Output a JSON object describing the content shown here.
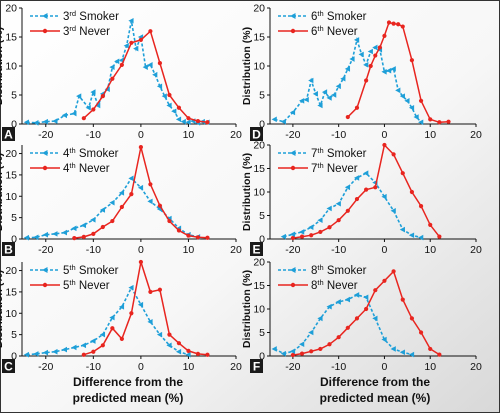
{
  "colors": {
    "smoker": "#1e9fd8",
    "never": "#e8251f"
  },
  "x_label_line1": "Difference from the",
  "x_label_line2": "predicted mean (%)",
  "y_label": "Distribution (%)",
  "chart_data": [
    {
      "type": "line",
      "panel": "A",
      "xlim": [
        -25,
        20
      ],
      "ylim": [
        0,
        20
      ],
      "xticks": [
        -20,
        -10,
        0,
        10,
        20
      ],
      "yticks": [
        0,
        5,
        10,
        15,
        20
      ],
      "legend": {
        "position": "top-left",
        "smoker_ord": "3",
        "smoker_sup": "rd",
        "smoker_word": "Smoker",
        "never_ord": "3",
        "never_sup": "rd",
        "never_word": "Never"
      },
      "series": [
        {
          "name": "3rd Smoker",
          "style": "smoker",
          "x": [
            -24,
            -22,
            -20,
            -18,
            -16,
            -14,
            -13,
            -11,
            -10,
            -9,
            -8,
            -7,
            -6,
            -5,
            -4,
            -3,
            -2,
            -1,
            0,
            1,
            2,
            3,
            4,
            5,
            6,
            7,
            8,
            9,
            10,
            11,
            12,
            13,
            14
          ],
          "y": [
            0.3,
            0.2,
            0.4,
            0.5,
            1.5,
            1.8,
            4.8,
            2.8,
            5.5,
            3.2,
            5.2,
            6.0,
            9.8,
            10.8,
            11.0,
            13.5,
            17.8,
            13.0,
            15.0,
            9.8,
            10.2,
            8.5,
            6.5,
            4.8,
            3.2,
            2.2,
            0.8,
            0.4,
            0.3,
            0.5,
            0.2,
            0.4,
            0.3
          ]
        },
        {
          "name": "3rd Never",
          "style": "never",
          "x": [
            -12,
            -10,
            -8,
            -6,
            -4,
            -2,
            0,
            2,
            4,
            6,
            8,
            10,
            12,
            14
          ],
          "y": [
            1.0,
            2.5,
            4.8,
            7.8,
            10.2,
            14.0,
            14.5,
            16.0,
            10.5,
            5.0,
            2.8,
            1.0,
            0.5,
            0.3
          ]
        }
      ]
    },
    {
      "type": "line",
      "panel": "D",
      "xlim": [
        -25,
        20
      ],
      "ylim": [
        0,
        20
      ],
      "xticks": [
        -20,
        -10,
        0,
        10,
        20
      ],
      "yticks": [
        0,
        5,
        10,
        15,
        20
      ],
      "legend": {
        "position": "top-left",
        "smoker_ord": "6",
        "smoker_sup": "th",
        "smoker_word": "Smoker",
        "never_ord": "6",
        "never_sup": "th",
        "never_word": "Never"
      },
      "series": [
        {
          "name": "6th Smoker",
          "style": "smoker",
          "x": [
            -24,
            -22,
            -20,
            -18,
            -17,
            -16,
            -15,
            -14,
            -13,
            -12,
            -11,
            -10,
            -9,
            -8,
            -7,
            -6,
            -5,
            -4,
            -3,
            -2,
            -1,
            0,
            1,
            2,
            3,
            4,
            5,
            6,
            7,
            8
          ],
          "y": [
            0.8,
            0.4,
            2.0,
            4.0,
            4.2,
            7.5,
            5.2,
            3.2,
            5.5,
            4.5,
            5.0,
            6.5,
            7.8,
            9.5,
            11.2,
            14.5,
            12.0,
            10.2,
            12.5,
            13.2,
            12.8,
            9.0,
            9.2,
            9.5,
            5.8,
            4.8,
            4.0,
            2.8,
            1.2,
            0.3
          ]
        },
        {
          "name": "6th Never",
          "style": "never",
          "x": [
            -8,
            -6,
            -4,
            -3,
            -2,
            -1,
            0,
            1,
            2,
            3,
            4,
            6,
            8,
            10,
            12,
            14
          ],
          "y": [
            1.2,
            2.8,
            7.5,
            10.0,
            11.8,
            13.2,
            15.2,
            17.5,
            17.3,
            17.2,
            16.8,
            11.0,
            4.0,
            0.8,
            0.3,
            0.4
          ]
        }
      ]
    },
    {
      "type": "line",
      "panel": "B",
      "xlim": [
        -25,
        20
      ],
      "ylim": [
        0,
        22
      ],
      "xticks": [
        -20,
        -10,
        0,
        10,
        20
      ],
      "yticks": [
        0,
        5,
        10,
        15,
        20
      ],
      "legend": {
        "position": "top-left",
        "smoker_ord": "4",
        "smoker_sup": "th",
        "smoker_word": "Smoker",
        "never_ord": "4",
        "never_sup": "th",
        "never_word": "Never"
      },
      "series": [
        {
          "name": "4th Smoker",
          "style": "smoker",
          "x": [
            -24,
            -22,
            -20,
            -18,
            -16,
            -14,
            -12,
            -10,
            -8,
            -6,
            -4,
            -2,
            0,
            2,
            4,
            6,
            8,
            10,
            12
          ],
          "y": [
            0.3,
            0.4,
            1.0,
            1.2,
            1.5,
            2.5,
            3.2,
            4.5,
            6.8,
            8.5,
            10.8,
            14.2,
            12.0,
            8.8,
            7.0,
            4.8,
            2.5,
            1.0,
            0.5
          ]
        },
        {
          "name": "4th Never",
          "style": "never",
          "x": [
            -14,
            -12,
            -10,
            -8,
            -6,
            -4,
            -2,
            0,
            2,
            4,
            6,
            8,
            10,
            12,
            14
          ],
          "y": [
            0.2,
            0.5,
            1.2,
            2.8,
            4.2,
            7.5,
            10.5,
            21.5,
            12.8,
            7.8,
            4.2,
            2.0,
            0.8,
            0.4,
            0.3
          ]
        }
      ]
    },
    {
      "type": "line",
      "panel": "E",
      "xlim": [
        -25,
        20
      ],
      "ylim": [
        0,
        20
      ],
      "xticks": [
        -20,
        -10,
        0,
        10,
        20
      ],
      "yticks": [
        0,
        5,
        10,
        15,
        20
      ],
      "legend": {
        "position": "top-left",
        "smoker_ord": "7",
        "smoker_sup": "th",
        "smoker_word": "Smoker",
        "never_ord": "7",
        "never_sup": "th",
        "never_word": "Never"
      },
      "series": [
        {
          "name": "7th Smoker",
          "style": "smoker",
          "x": [
            -22,
            -20,
            -18,
            -16,
            -14,
            -12,
            -10,
            -8,
            -6,
            -4,
            -2,
            0,
            2,
            4,
            6,
            8
          ],
          "y": [
            0.5,
            1.0,
            1.5,
            2.5,
            4.0,
            6.5,
            7.5,
            11.0,
            13.0,
            14.0,
            12.0,
            9.0,
            6.0,
            2.0,
            0.8,
            0.3
          ]
        },
        {
          "name": "7th Never",
          "style": "never",
          "x": [
            -20,
            -18,
            -16,
            -14,
            -12,
            -10,
            -8,
            -6,
            -4,
            -2,
            0,
            2,
            4,
            6,
            8,
            10,
            12
          ],
          "y": [
            0.2,
            0.5,
            0.8,
            1.5,
            2.5,
            4.0,
            6.0,
            8.5,
            10.5,
            11.0,
            20.0,
            18.0,
            14.0,
            10.0,
            7.0,
            3.0,
            0.5
          ]
        }
      ]
    },
    {
      "type": "line",
      "panel": "C",
      "xlim": [
        -25,
        20
      ],
      "ylim": [
        0,
        22
      ],
      "xticks": [
        -20,
        -10,
        0,
        10,
        20
      ],
      "yticks": [
        0,
        5,
        10,
        15,
        20
      ],
      "legend": {
        "position": "top-left",
        "smoker_ord": "5",
        "smoker_sup": "th",
        "smoker_word": "Smoker",
        "never_ord": "5",
        "never_sup": "th",
        "never_word": "Never"
      },
      "series": [
        {
          "name": "5th Smoker",
          "style": "smoker",
          "x": [
            -24,
            -22,
            -20,
            -18,
            -16,
            -14,
            -12,
            -10,
            -8,
            -6,
            -4,
            -2,
            0,
            2,
            4,
            6,
            8,
            10
          ],
          "y": [
            0.3,
            0.5,
            0.8,
            1.0,
            1.5,
            2.0,
            2.5,
            3.5,
            5.0,
            9.0,
            11.5,
            16.0,
            12.0,
            8.0,
            5.0,
            2.5,
            1.0,
            0.3
          ]
        },
        {
          "name": "5th Never",
          "style": "never",
          "x": [
            -12,
            -10,
            -8,
            -6,
            -4,
            -2,
            0,
            2,
            4,
            6,
            8,
            10,
            12,
            14
          ],
          "y": [
            0.3,
            1.0,
            2.5,
            6.5,
            4.0,
            10.0,
            22.0,
            15.0,
            15.5,
            5.0,
            3.0,
            1.2,
            0.5,
            0.3
          ]
        }
      ]
    },
    {
      "type": "line",
      "panel": "F",
      "xlim": [
        -25,
        20
      ],
      "ylim": [
        0,
        20
      ],
      "xticks": [
        -20,
        -10,
        0,
        10,
        20
      ],
      "yticks": [
        0,
        5,
        10,
        15,
        20
      ],
      "legend": {
        "position": "top-left",
        "smoker_ord": "8",
        "smoker_sup": "th",
        "smoker_word": "Smoker",
        "never_ord": "8",
        "never_sup": "th",
        "never_word": "Never"
      },
      "series": [
        {
          "name": "8th Smoker",
          "style": "smoker",
          "x": [
            -24,
            -22,
            -20,
            -18,
            -16,
            -14,
            -12,
            -10,
            -8,
            -6,
            -4,
            -2,
            0,
            2,
            4,
            6
          ],
          "y": [
            1.5,
            0.5,
            1.0,
            2.5,
            5.0,
            8.0,
            10.5,
            11.5,
            12.0,
            13.0,
            12.5,
            8.0,
            3.5,
            1.5,
            0.8,
            0.3
          ]
        },
        {
          "name": "8th Never",
          "style": "never",
          "x": [
            -20,
            -18,
            -16,
            -14,
            -12,
            -10,
            -8,
            -6,
            -4,
            -2,
            0,
            2,
            4,
            6,
            8,
            10,
            12
          ],
          "y": [
            0.2,
            0.5,
            1.0,
            1.5,
            2.5,
            4.0,
            6.0,
            8.0,
            10.0,
            14.0,
            16.0,
            18.0,
            12.0,
            8.0,
            5.0,
            1.5,
            0.3
          ]
        }
      ]
    }
  ]
}
